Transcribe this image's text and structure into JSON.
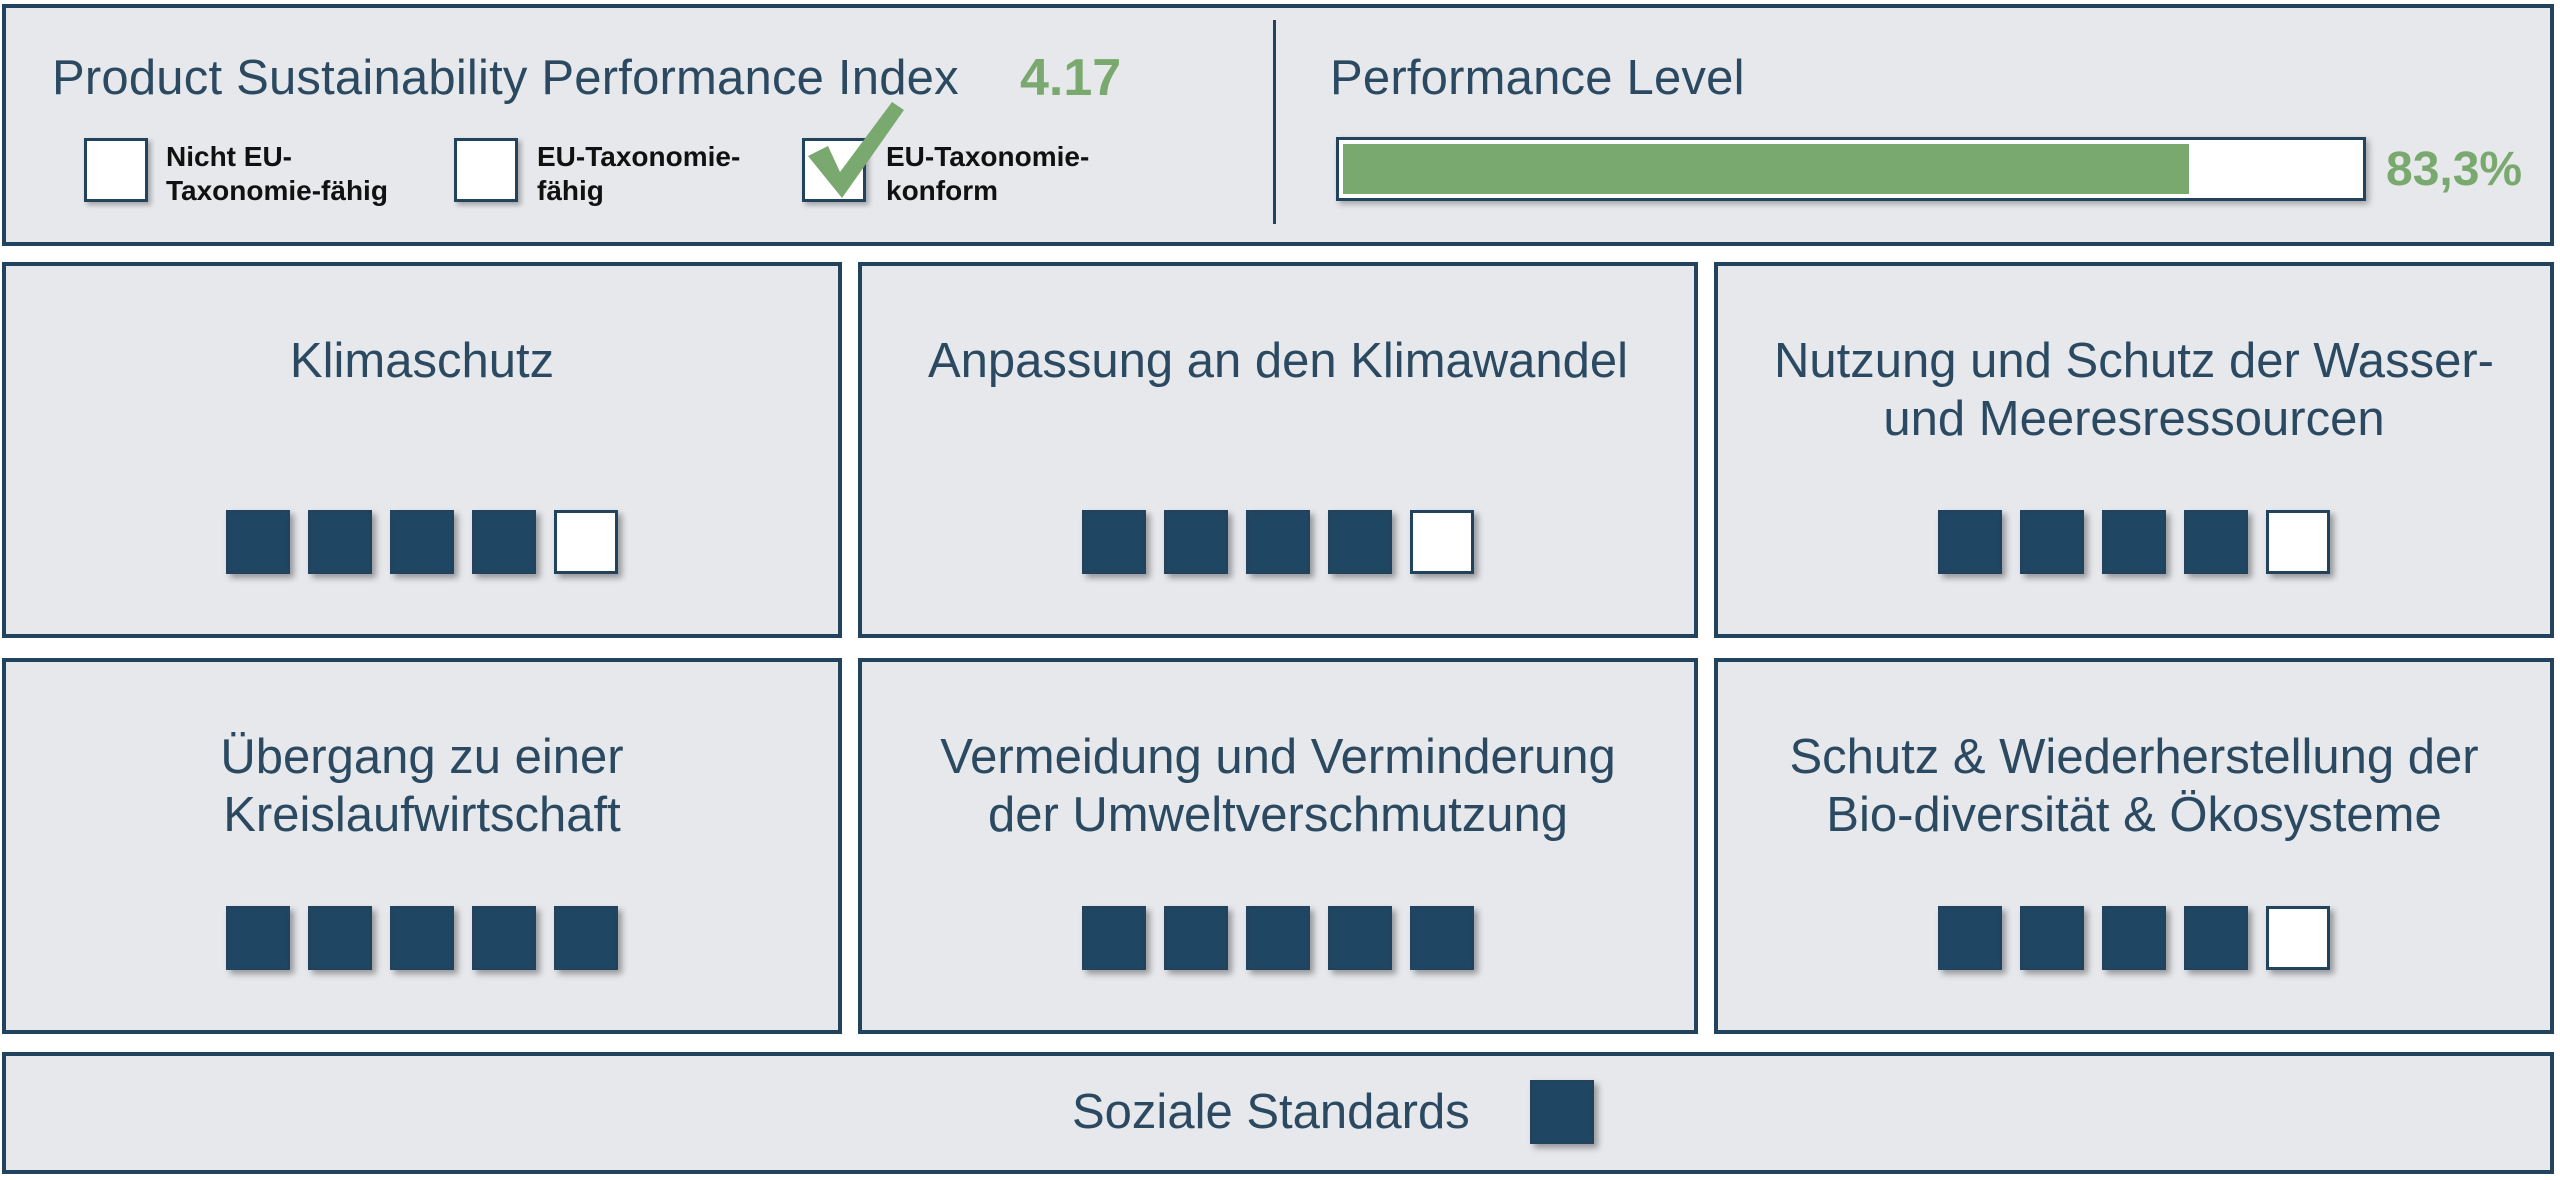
{
  "header": {
    "title": "Product Sustainability Performance Index",
    "index_value": "4.17",
    "checkboxes": [
      {
        "label_line1": "Nicht EU-",
        "label_line2": "Taxonomie-fähig",
        "checked": false
      },
      {
        "label_line1": "EU-Taxonomie-",
        "label_line2": "fähig",
        "checked": false
      },
      {
        "label_line1": "EU-Taxonomie-",
        "label_line2": "konform",
        "checked": true
      }
    ],
    "performance": {
      "title": "Performance Level",
      "value_label": "83,3%",
      "fraction": 0.833
    }
  },
  "cards": [
    {
      "title_line1": "Klimaschutz",
      "title_line2": "",
      "filled": 4,
      "total": 5
    },
    {
      "title_line1": "Anpassung an den Klimawandel",
      "title_line2": "",
      "filled": 4,
      "total": 5
    },
    {
      "title_line1": "Nutzung und Schutz der Wasser-",
      "title_line2": "und Meeresressourcen",
      "filled": 4,
      "total": 5
    },
    {
      "title_line1": "Übergang zu einer",
      "title_line2": "Kreislaufwirtschaft",
      "filled": 5,
      "total": 5
    },
    {
      "title_line1": "Vermeidung und Verminderung",
      "title_line2": "der Umweltverschmutzung",
      "filled": 5,
      "total": 5
    },
    {
      "title_line1": "Schutz & Wiederherstellung der",
      "title_line2": "Bio-diversität & Ökosysteme",
      "filled": 4,
      "total": 5
    }
  ],
  "footer": {
    "label": "Soziale Standards",
    "filled": 1,
    "total": 1
  },
  "colors": {
    "navy": "#1f4662",
    "accent_green": "#79a96e",
    "panel_bg": "#e6e8ec"
  }
}
